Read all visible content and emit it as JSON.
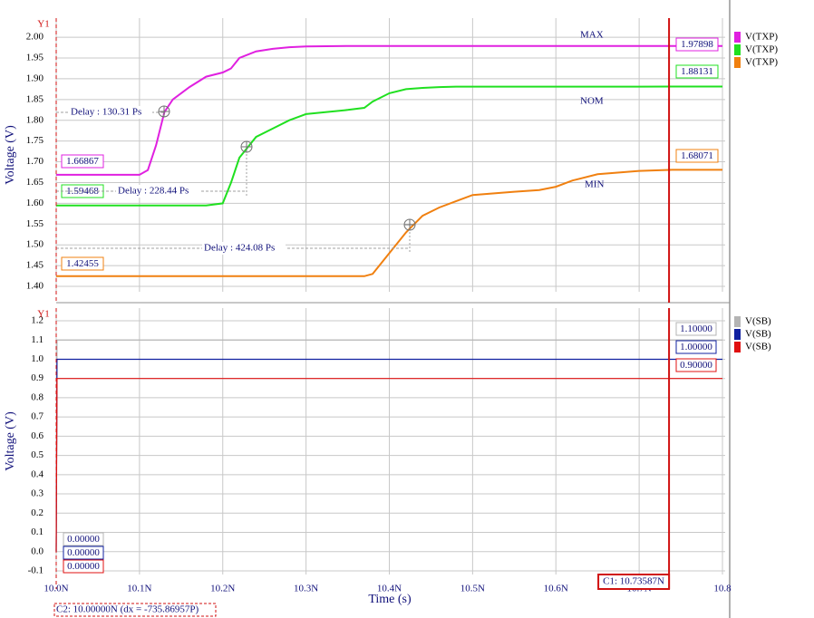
{
  "chart_data": [
    {
      "type": "line",
      "y_label": "Voltage (V)",
      "axis_tag": "Y1",
      "xlim": [
        10.0,
        10.8
      ],
      "ylim": [
        1.387,
        2.046
      ],
      "yticks": [
        {
          "value": 1.4,
          "label": "1.40"
        },
        {
          "value": 1.45,
          "label": "1.45"
        },
        {
          "value": 1.5,
          "label": "1.50"
        },
        {
          "value": 1.55,
          "label": "1.55"
        },
        {
          "value": 1.6,
          "label": "1.60"
        },
        {
          "value": 1.65,
          "label": "1.65"
        },
        {
          "value": 1.7,
          "label": "1.70"
        },
        {
          "value": 1.75,
          "label": "1.75"
        },
        {
          "value": 1.8,
          "label": "1.80"
        },
        {
          "value": 1.85,
          "label": "1.85"
        },
        {
          "value": 1.9,
          "label": "1.90"
        },
        {
          "value": 1.95,
          "label": "1.95"
        },
        {
          "value": 2.0,
          "label": "2.00"
        }
      ],
      "grid": true,
      "x": [
        10.0,
        10.05,
        10.1,
        10.11,
        10.12,
        10.13,
        10.14,
        10.16,
        10.18,
        10.2,
        10.21,
        10.22,
        10.24,
        10.26,
        10.28,
        10.3,
        10.35,
        10.37,
        10.38,
        10.4,
        10.42,
        10.44,
        10.46,
        10.48,
        10.5,
        10.55,
        10.58,
        10.6,
        10.62,
        10.65,
        10.7,
        10.74,
        10.8
      ],
      "series": [
        {
          "name": "V(TXP)",
          "tag": "MAX",
          "color": "#e020e0",
          "start_readout": "1.66867",
          "end_readout": "1.97898",
          "values": [
            1.66867,
            1.66867,
            1.66867,
            1.68,
            1.74,
            1.82,
            1.85,
            1.88,
            1.905,
            1.915,
            1.925,
            1.95,
            1.966,
            1.972,
            1.976,
            1.978,
            1.979,
            1.979,
            1.979,
            1.979,
            1.979,
            1.979,
            1.979,
            1.979,
            1.979,
            1.979,
            1.979,
            1.979,
            1.979,
            1.979,
            1.979,
            1.97898,
            1.97898
          ]
        },
        {
          "name": "V(TXP)",
          "tag": "NOM",
          "color": "#20e020",
          "start_readout": "1.59468",
          "end_readout": "1.88131",
          "values": [
            1.59468,
            1.59468,
            1.59468,
            1.59468,
            1.59468,
            1.59468,
            1.59468,
            1.59468,
            1.59468,
            1.6,
            1.65,
            1.71,
            1.76,
            1.78,
            1.8,
            1.815,
            1.825,
            1.83,
            1.845,
            1.865,
            1.875,
            1.878,
            1.88,
            1.881,
            1.881,
            1.881,
            1.881,
            1.881,
            1.881,
            1.881,
            1.881,
            1.88131,
            1.88131
          ]
        },
        {
          "name": "V(TXP)",
          "tag": "MIN",
          "color": "#f08010",
          "start_readout": "1.42455",
          "end_readout": "1.68071",
          "values": [
            1.42455,
            1.42455,
            1.42455,
            1.42455,
            1.42455,
            1.42455,
            1.42455,
            1.42455,
            1.42455,
            1.42455,
            1.42455,
            1.42455,
            1.42455,
            1.42455,
            1.42455,
            1.42455,
            1.42455,
            1.42455,
            1.43,
            1.48,
            1.53,
            1.57,
            1.59,
            1.605,
            1.62,
            1.628,
            1.632,
            1.64,
            1.655,
            1.67,
            1.678,
            1.68071,
            1.68071
          ]
        }
      ],
      "annotations": [
        "Delay : 130.31 Ps",
        "Delay : 228.44 Ps",
        "Delay : 424.08 Ps"
      ]
    },
    {
      "type": "line",
      "y_label": "Voltage (V)",
      "axis_tag": "Y1",
      "x_label": "Time (s)",
      "xlim": [
        10.0,
        10.8
      ],
      "ylim": [
        -0.119,
        1.266
      ],
      "xticks": [
        {
          "value": 10.0,
          "label": "10.0N"
        },
        {
          "value": 10.1,
          "label": "10.1N"
        },
        {
          "value": 10.2,
          "label": "10.2N"
        },
        {
          "value": 10.3,
          "label": "10.3N"
        },
        {
          "value": 10.4,
          "label": "10.4N"
        },
        {
          "value": 10.5,
          "label": "10.5N"
        },
        {
          "value": 10.6,
          "label": "10.6N"
        },
        {
          "value": 10.7,
          "label": "10.7N"
        },
        10.8
      ],
      "yticks": [
        -0.1,
        {
          "value": 0,
          "label": "0.0"
        },
        0.1,
        0.2,
        0.3,
        0.4,
        0.5,
        0.6,
        0.7,
        0.8,
        0.9,
        {
          "value": 1,
          "label": "1.0"
        },
        1.1,
        1.2
      ],
      "grid": true,
      "x": [
        10.0,
        10.001,
        10.8
      ],
      "series": [
        {
          "name": "V(SB)",
          "color": "#b4b4b4",
          "start_readout": "0.00000",
          "end_readout": "1.10000",
          "values": [
            0,
            1.1,
            1.1
          ]
        },
        {
          "name": "V(SB)",
          "color": "#1020a0",
          "start_readout": "0.00000",
          "end_readout": "1.00000",
          "values": [
            0,
            1,
            1
          ]
        },
        {
          "name": "V(SB)",
          "color": "#e01010",
          "start_readout": "0.00000",
          "end_readout": "0.90000",
          "values": [
            0,
            0.9,
            0.9
          ]
        }
      ],
      "cursors": [
        {
          "label": "C1: 10.73587N",
          "x": 10.73587
        },
        {
          "label": "C2: 10.00000N (dx = -735.86957P)",
          "x": 10.0
        }
      ]
    }
  ]
}
